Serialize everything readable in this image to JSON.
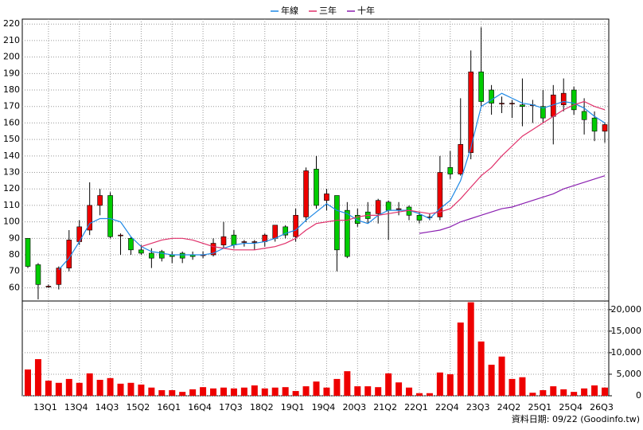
{
  "chart_data": [
    {
      "type": "candlestick",
      "open": [
        90,
        74,
        61,
        62,
        72,
        88,
        95,
        110,
        116,
        92,
        90,
        83,
        81,
        82,
        80,
        81,
        80,
        80,
        80,
        86,
        92,
        88,
        88,
        88,
        90,
        97,
        91,
        103,
        132,
        113,
        116,
        107,
        104,
        106,
        105,
        112,
        108,
        109,
        104,
        103,
        103,
        133,
        129,
        142,
        191,
        180,
        172,
        172,
        171,
        171,
        170,
        164,
        171,
        180,
        167,
        163,
        155
      ],
      "high": [
        90,
        75,
        62,
        73,
        95,
        101,
        124,
        120,
        118,
        93,
        91,
        86,
        84,
        83,
        82,
        82,
        82,
        82,
        90,
        100,
        95,
        89,
        89,
        93,
        98,
        98,
        108,
        133,
        140,
        120,
        116,
        112,
        108,
        112,
        114,
        113,
        112,
        110,
        106,
        105,
        140,
        143,
        175,
        204,
        218,
        183,
        176,
        174,
        187,
        174,
        180,
        183,
        187,
        182,
        175,
        167,
        160
      ],
      "low": [
        72,
        53,
        60,
        59,
        70,
        86,
        92,
        104,
        90,
        80,
        80,
        80,
        72,
        76,
        75,
        75,
        77,
        78,
        79,
        84,
        84,
        85,
        83,
        85,
        88,
        90,
        88,
        100,
        108,
        107,
        70,
        78,
        97,
        99,
        99,
        89,
        104,
        101,
        99,
        101,
        101,
        126,
        128,
        138,
        170,
        165,
        166,
        163,
        158,
        160,
        160,
        147,
        167,
        165,
        153,
        149,
        148
      ],
      "close": [
        73,
        62,
        61,
        72,
        89,
        97,
        110,
        116,
        91,
        92,
        83,
        81,
        78,
        78,
        79,
        78,
        79,
        80,
        87,
        91,
        86,
        88,
        88,
        92,
        98,
        92,
        104,
        131,
        110,
        117,
        83,
        79,
        99,
        102,
        113,
        107,
        108,
        104,
        101,
        103,
        130,
        129,
        147,
        191,
        173,
        172,
        172,
        172,
        170,
        171,
        163,
        177,
        178,
        168,
        162,
        155,
        159
      ],
      "up_color": "#ee0000",
      "down_color": "#00cc00",
      "ylim": [
        52,
        223
      ],
      "yticks": [
        60,
        70,
        80,
        90,
        100,
        110,
        120,
        130,
        140,
        150,
        160,
        170,
        180,
        190,
        200,
        210,
        220
      ],
      "grid": true,
      "series": [
        {
          "name": "年線",
          "color": "#1e88e5",
          "values": [
            null,
            null,
            null,
            71,
            78,
            88,
            99,
            102,
            102,
            100,
            91,
            85,
            82,
            81,
            80,
            80,
            80,
            80,
            81,
            84,
            86,
            87,
            87,
            88,
            90,
            93,
            95,
            101,
            106,
            111,
            107,
            105,
            101,
            99,
            104,
            107,
            107,
            107,
            105,
            102,
            108,
            113,
            125,
            145,
            170,
            174,
            178,
            175,
            172,
            171,
            169,
            171,
            173,
            172,
            169,
            164,
            160
          ]
        },
        {
          "name": "三年",
          "color": "#e0306a",
          "values": [
            null,
            null,
            null,
            null,
            null,
            null,
            null,
            null,
            null,
            null,
            null,
            85,
            87,
            89,
            90,
            90,
            89,
            87,
            85,
            84,
            83,
            83,
            83,
            84,
            85,
            87,
            90,
            95,
            99,
            100,
            101,
            101,
            103,
            104,
            104,
            105,
            106,
            107,
            106,
            105,
            106,
            108,
            114,
            121,
            128,
            133,
            140,
            146,
            152,
            156,
            160,
            164,
            168,
            171,
            173,
            170,
            168
          ]
        },
        {
          "name": "十年",
          "color": "#8a1fb0",
          "values": [
            null,
            null,
            null,
            null,
            null,
            null,
            null,
            null,
            null,
            null,
            null,
            null,
            null,
            null,
            null,
            null,
            null,
            null,
            null,
            null,
            null,
            null,
            null,
            null,
            null,
            null,
            null,
            null,
            null,
            null,
            null,
            null,
            null,
            null,
            null,
            null,
            null,
            null,
            93,
            94,
            95,
            97,
            100,
            102,
            104,
            106,
            108,
            109,
            111,
            113,
            115,
            117,
            120,
            122,
            124,
            126,
            128
          ]
        }
      ]
    },
    {
      "type": "bar",
      "categories": [
        null,
        null,
        "13Q1",
        null,
        null,
        "13Q4",
        null,
        null,
        "14Q3",
        null,
        null,
        "15Q2",
        null,
        null,
        "16Q1",
        null,
        null,
        "16Q4",
        null,
        null,
        "17Q3",
        null,
        null,
        "18Q2",
        null,
        null,
        "19Q1",
        null,
        null,
        "19Q4",
        null,
        null,
        "20Q3",
        null,
        null,
        "21Q2",
        null,
        null,
        "22Q1",
        null,
        null,
        "22Q4",
        null,
        null,
        "23Q3",
        null,
        null,
        "24Q2",
        null,
        null,
        "25Q1",
        null,
        null,
        "25Q4",
        null,
        null,
        "26Q3"
      ],
      "values": [
        6100,
        8500,
        3500,
        3000,
        3900,
        3000,
        5200,
        3700,
        4100,
        2800,
        3000,
        2600,
        1900,
        1300,
        1300,
        900,
        1500,
        2000,
        1700,
        1900,
        1700,
        1900,
        2400,
        1700,
        1900,
        2000,
        1100,
        2200,
        3300,
        1900,
        3900,
        5700,
        2200,
        2200,
        2000,
        5200,
        3100,
        1900,
        600,
        600,
        5400,
        5000,
        17000,
        21700,
        12600,
        7200,
        9100,
        3900,
        4300,
        700,
        1300,
        2200,
        1500,
        900,
        1700,
        2400,
        1900
      ],
      "color": "#ee0000",
      "ylim": [
        0,
        22000
      ],
      "yticks": [
        0,
        {
          "value": 5000,
          "label": "5,000"
        },
        {
          "value": 10000,
          "label": "10,000"
        },
        {
          "value": 15000,
          "label": "15,000"
        },
        {
          "value": 20000,
          "label": "20,000"
        }
      ],
      "grid": true
    }
  ],
  "footnote": "資料日期: 09/22 (Goodinfo.tw)"
}
